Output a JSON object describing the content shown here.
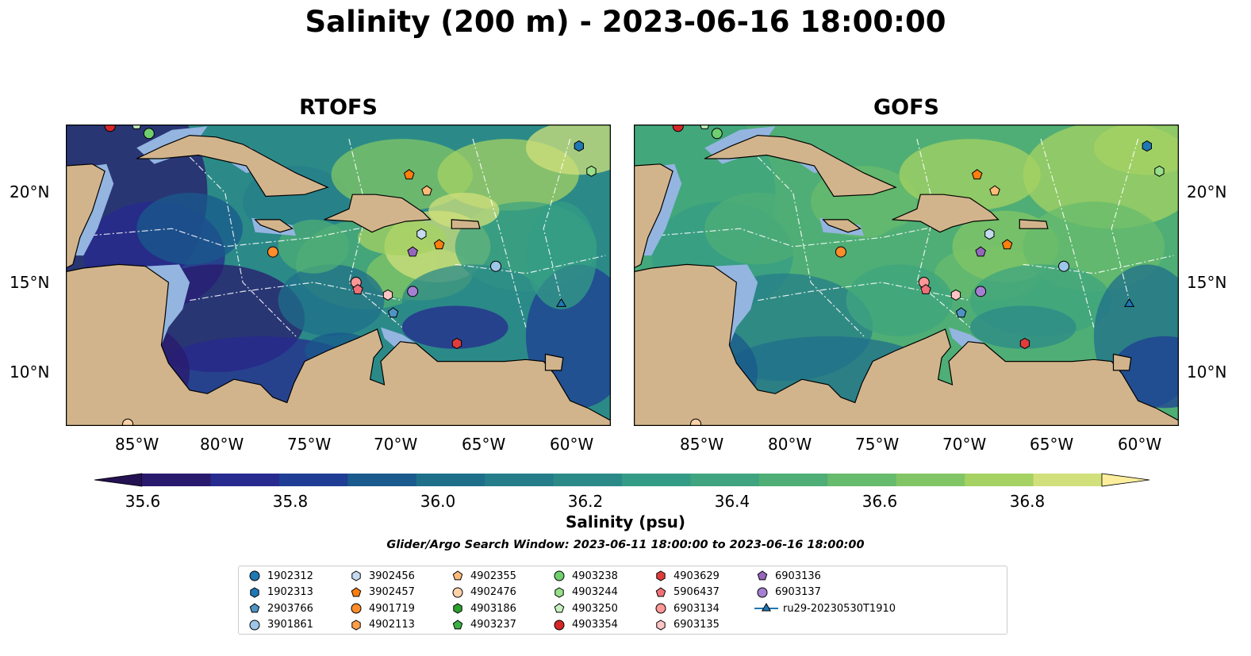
{
  "title": "Salinity (200 m) - 2023-06-16 18:00:00",
  "panels": [
    {
      "title": "RTOFS",
      "theme": "rtofs"
    },
    {
      "title": "GOFS",
      "theme": "gofs"
    }
  ],
  "x_ticks": [
    "85°W",
    "80°W",
    "75°W",
    "70°W",
    "65°W",
    "60°W"
  ],
  "y_ticks": [
    "20°N",
    "15°N",
    "10°N"
  ],
  "colorbar": {
    "label": "Salinity (psu)",
    "ticks": [
      "35.6",
      "35.8",
      "36.0",
      "36.2",
      "36.4",
      "36.6",
      "36.8"
    ],
    "min": 35.5,
    "max": 36.9,
    "colors": [
      "#2a1a6e",
      "#272a8f",
      "#1f3d94",
      "#1a5a8c",
      "#1f6f8b",
      "#257d8a",
      "#2b8a88",
      "#349c86",
      "#3fa47f",
      "#4fae75",
      "#67bb6c",
      "#82c566",
      "#a6d163",
      "#d1e07b"
    ],
    "extend_low": "#241152",
    "extend_high": "#fcee9d"
  },
  "search_window": "Glider/Argo Search Window: 2023-06-11 18:00:00 to 2023-06-16 18:00:00",
  "colors": {
    "land": "#d2b48c",
    "shelf": "#93b5e0",
    "coast": "#000000"
  },
  "legend": [
    {
      "label": "1902312",
      "marker": "circle",
      "color": "#1f77b4"
    },
    {
      "label": "1902313",
      "marker": "hexagon",
      "color": "#1f77b4"
    },
    {
      "label": "2903766",
      "marker": "pentagon",
      "color": "#4f93c4"
    },
    {
      "label": "3901861",
      "marker": "circle",
      "color": "#9dc6e8"
    },
    {
      "label": "3902456",
      "marker": "hexagon",
      "color": "#c6dbef"
    },
    {
      "label": "3902457",
      "marker": "pentagon",
      "color": "#ff7f0e"
    },
    {
      "label": "4901719",
      "marker": "circle",
      "color": "#ff8c2a"
    },
    {
      "label": "4902113",
      "marker": "hexagon",
      "color": "#ff9e4a"
    },
    {
      "label": "4902355",
      "marker": "pentagon",
      "color": "#ffbb78"
    },
    {
      "label": "4902476",
      "marker": "circle",
      "color": "#ffd1a8"
    },
    {
      "label": "4903186",
      "marker": "hexagon",
      "color": "#2ca02c"
    },
    {
      "label": "4903237",
      "marker": "pentagon",
      "color": "#3cb043"
    },
    {
      "label": "4903238",
      "marker": "circle",
      "color": "#6fcf6f"
    },
    {
      "label": "4903244",
      "marker": "hexagon",
      "color": "#98df8a"
    },
    {
      "label": "4903250",
      "marker": "pentagon",
      "color": "#c7f0c0"
    },
    {
      "label": "4903354",
      "marker": "circle",
      "color": "#d62728"
    },
    {
      "label": "4903629",
      "marker": "hexagon",
      "color": "#e03c3c"
    },
    {
      "label": "5906437",
      "marker": "pentagon",
      "color": "#f07078"
    },
    {
      "label": "6903134",
      "marker": "circle",
      "color": "#ff9896"
    },
    {
      "label": "6903135",
      "marker": "hexagon",
      "color": "#ffc4c4"
    },
    {
      "label": "6903136",
      "marker": "pentagon",
      "color": "#9467bd"
    },
    {
      "label": "6903137",
      "marker": "circle",
      "color": "#a57fd1"
    },
    {
      "label": "ru29-20230530T1910",
      "marker": "triangle-line",
      "color": "#1f77b4"
    }
  ],
  "floats": [
    {
      "id": "4903354",
      "lon": -86.5,
      "lat": 23.7
    },
    {
      "id": "4903250",
      "lon": -85.0,
      "lat": 23.8
    },
    {
      "id": "4903238",
      "lon": -84.3,
      "lat": 23.3
    },
    {
      "id": "1902313",
      "lon": -60.0,
      "lat": 22.6
    },
    {
      "id": "4903244",
      "lon": -59.3,
      "lat": 21.2
    },
    {
      "id": "3902457",
      "lon": -69.6,
      "lat": 21.0
    },
    {
      "id": "4902355",
      "lon": -68.6,
      "lat": 20.1
    },
    {
      "id": "3902456",
      "lon": -68.9,
      "lat": 17.7
    },
    {
      "id": "3902457",
      "lon": -67.9,
      "lat": 17.1
    },
    {
      "id": "4901719",
      "lon": -77.3,
      "lat": 16.7
    },
    {
      "id": "6903136",
      "lon": -69.4,
      "lat": 16.7
    },
    {
      "id": "3901861",
      "lon": -64.7,
      "lat": 15.9
    },
    {
      "id": "6903134",
      "lon": -72.6,
      "lat": 15.0
    },
    {
      "id": "5906437",
      "lon": -72.5,
      "lat": 14.6
    },
    {
      "id": "6903135",
      "lon": -70.8,
      "lat": 14.3
    },
    {
      "id": "6903137",
      "lon": -69.4,
      "lat": 14.5
    },
    {
      "id": "2903766",
      "lon": -70.5,
      "lat": 13.3
    },
    {
      "id": "4903629",
      "lon": -66.9,
      "lat": 11.6
    },
    {
      "id": "4902476",
      "lon": -85.5,
      "lat": 7.1
    }
  ],
  "glider": {
    "id": "ru29-20230530T1910",
    "lon": -61.0,
    "lat": 13.8
  }
}
